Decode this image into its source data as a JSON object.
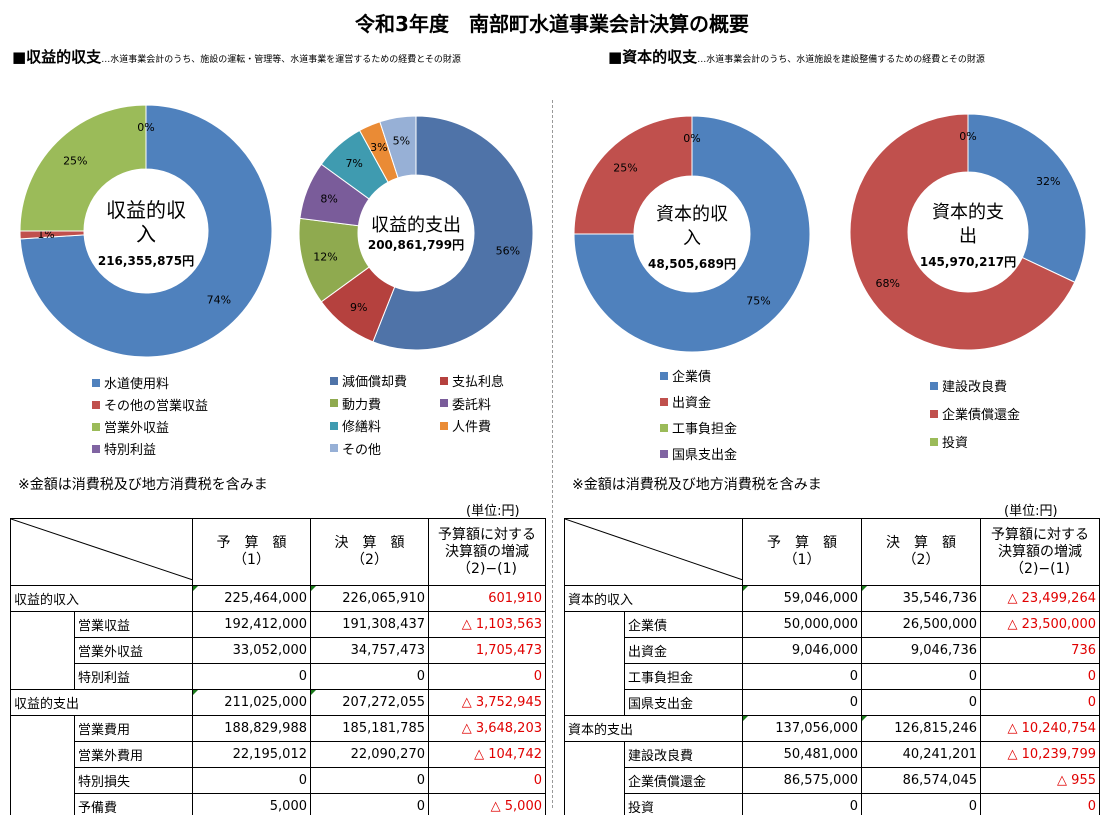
{
  "title": "令和3年度　南部町水道事業会計決算の概要",
  "left_section": {
    "heading": "■収益的収支",
    "sub": "…水道事業会計のうち、施設の運転・管理等、水道事業を運営するための経費とその財源"
  },
  "right_section": {
    "heading": "■資本的収支",
    "sub": "…水道事業会計のうち、水道施設を建設整備するための経費とその財源"
  },
  "chart_data": [
    {
      "type": "pie",
      "center_title": "収益的収入",
      "center_amount": "216,355,875円",
      "categories": [
        "水道使用料",
        "その他の営業収益",
        "営業外収益",
        "特別利益"
      ],
      "values": [
        74,
        1,
        25,
        0
      ],
      "value_labels": [
        "74%",
        "1%",
        "25%",
        "0%"
      ],
      "colors": [
        "#4f81bd",
        "#c0504d",
        "#9bbb59",
        "#8064a2"
      ],
      "donut": true
    },
    {
      "type": "pie",
      "center_title": "収益的支出",
      "center_amount": "200,861,799円",
      "categories": [
        "減価償却費",
        "支払利息",
        "動力費",
        "委託料",
        "修繕料",
        "人件費",
        "その他"
      ],
      "values": [
        56,
        9,
        12,
        8,
        7,
        3,
        5
      ],
      "value_labels": [
        "56%",
        "9%",
        "12%",
        "8%",
        "7%",
        "3%",
        "5%"
      ],
      "colors": [
        "#4f73a8",
        "#b5413e",
        "#8faa4f",
        "#7a5c9a",
        "#3f9bb0",
        "#ea8b35",
        "#97b0d6"
      ],
      "donut": true
    },
    {
      "type": "pie",
      "center_title": "資本的収入",
      "center_amount": "48,505,689円",
      "categories": [
        "企業債",
        "出資金",
        "工事負担金",
        "国県支出金"
      ],
      "values": [
        75,
        25,
        0,
        0
      ],
      "value_labels": [
        "75%",
        "25%",
        "0%",
        ""
      ],
      "colors": [
        "#4f81bd",
        "#c0504d",
        "#9bbb59",
        "#8064a2"
      ],
      "donut": true
    },
    {
      "type": "pie",
      "center_title": "資本的支出",
      "center_amount": "145,970,217円",
      "categories": [
        "建設改良費",
        "企業債償還金",
        "投資"
      ],
      "values": [
        32,
        68,
        0
      ],
      "value_labels": [
        "32%",
        "68%",
        "0%"
      ],
      "colors": [
        "#4f81bd",
        "#c0504d",
        "#9bbb59"
      ],
      "donut": true
    }
  ],
  "note": "※金額は消費税及び地方消費税を含みま",
  "unit": "(単位:円)",
  "table_headers": {
    "budget": "予　算　額\n（1）",
    "actual": "決　算　額\n（2）",
    "diff": "予算額に対する\n決算額の増減\n（2)−(1)"
  },
  "left_table": [
    {
      "group": "収益的収入",
      "label": "",
      "budget": "225,464,000",
      "actual": "226,065,910",
      "diff": "601,910"
    },
    {
      "group": "",
      "label": "営業収益",
      "budget": "192,412,000",
      "actual": "191,308,437",
      "diff": "△ 1,103,563"
    },
    {
      "group": "",
      "label": "営業外収益",
      "budget": "33,052,000",
      "actual": "34,757,473",
      "diff": "1,705,473"
    },
    {
      "group": "",
      "label": "特別利益",
      "budget": "0",
      "actual": "0",
      "diff": "0"
    },
    {
      "group": "収益的支出",
      "label": "",
      "budget": "211,025,000",
      "actual": "207,272,055",
      "diff": "△ 3,752,945"
    },
    {
      "group": "",
      "label": "営業費用",
      "budget": "188,829,988",
      "actual": "185,181,785",
      "diff": "△ 3,648,203"
    },
    {
      "group": "",
      "label": "営業外費用",
      "budget": "22,195,012",
      "actual": "22,090,270",
      "diff": "△ 104,742"
    },
    {
      "group": "",
      "label": "特別損失",
      "budget": "0",
      "actual": "0",
      "diff": "0"
    },
    {
      "group": "",
      "label": "予備費",
      "budget": "5,000",
      "actual": "0",
      "diff": "△ 5,000"
    }
  ],
  "right_table": [
    {
      "group": "資本的収入",
      "label": "",
      "budget": "59,046,000",
      "actual": "35,546,736",
      "diff": "△ 23,499,264"
    },
    {
      "group": "",
      "label": "企業債",
      "budget": "50,000,000",
      "actual": "26,500,000",
      "diff": "△ 23,500,000"
    },
    {
      "group": "",
      "label": "出資金",
      "budget": "9,046,000",
      "actual": "9,046,736",
      "diff": "736"
    },
    {
      "group": "",
      "label": "工事負担金",
      "budget": "0",
      "actual": "0",
      "diff": "0"
    },
    {
      "group": "",
      "label": "国県支出金",
      "budget": "0",
      "actual": "0",
      "diff": "0"
    },
    {
      "group": "資本的支出",
      "label": "",
      "budget": "137,056,000",
      "actual": "126,815,246",
      "diff": "△ 10,240,754"
    },
    {
      "group": "",
      "label": "建設改良費",
      "budget": "50,481,000",
      "actual": "40,241,201",
      "diff": "△ 10,239,799"
    },
    {
      "group": "",
      "label": "企業債償還金",
      "budget": "86,575,000",
      "actual": "86,574,045",
      "diff": "△ 955"
    },
    {
      "group": "",
      "label": "投資",
      "budget": "0",
      "actual": "0",
      "diff": "0"
    }
  ]
}
